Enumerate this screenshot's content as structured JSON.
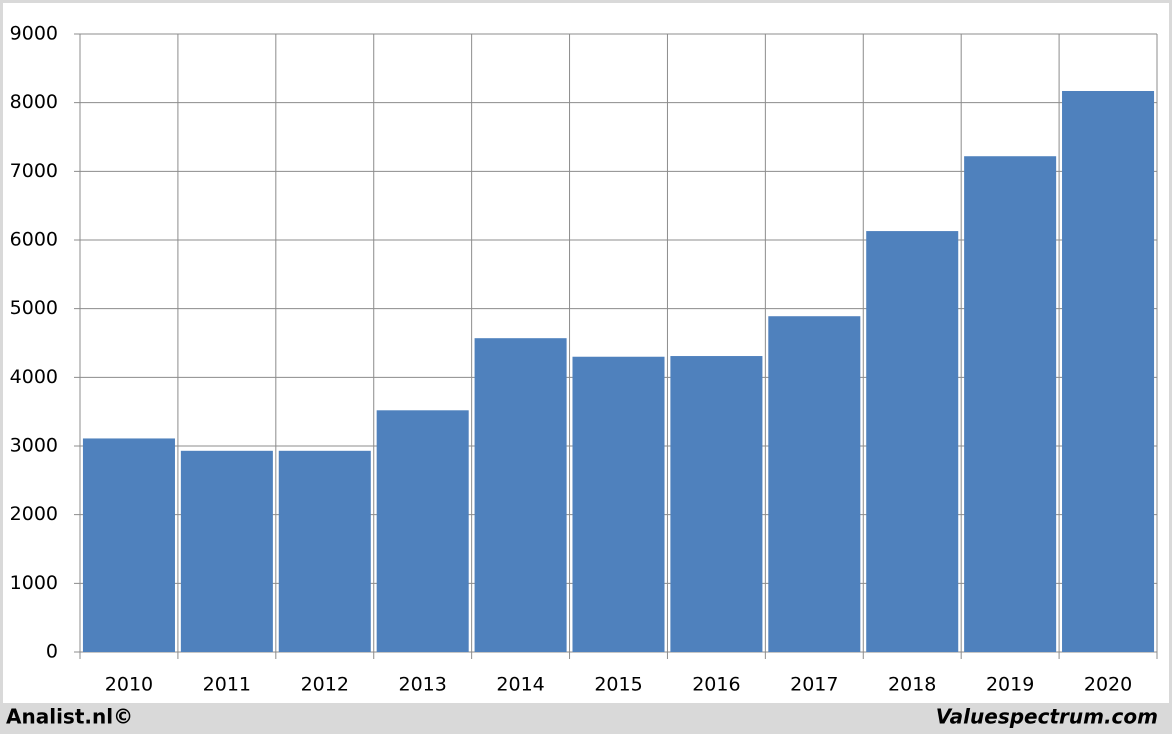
{
  "chart_data": {
    "type": "bar",
    "categories": [
      "2010",
      "2011",
      "2012",
      "2013",
      "2014",
      "2015",
      "2016",
      "2017",
      "2018",
      "2019",
      "2020"
    ],
    "values": [
      3110,
      2930,
      2930,
      3520,
      4570,
      4300,
      4310,
      4890,
      6130,
      7220,
      8170
    ],
    "color": "#4f81bd",
    "ylim": [
      0,
      9000
    ],
    "yticks": [
      0,
      1000,
      2000,
      3000,
      4000,
      5000,
      6000,
      7000,
      8000,
      9000
    ],
    "grid": true,
    "footer_left": "Analist.nl©",
    "footer_right": "Valuespectrum.com"
  }
}
